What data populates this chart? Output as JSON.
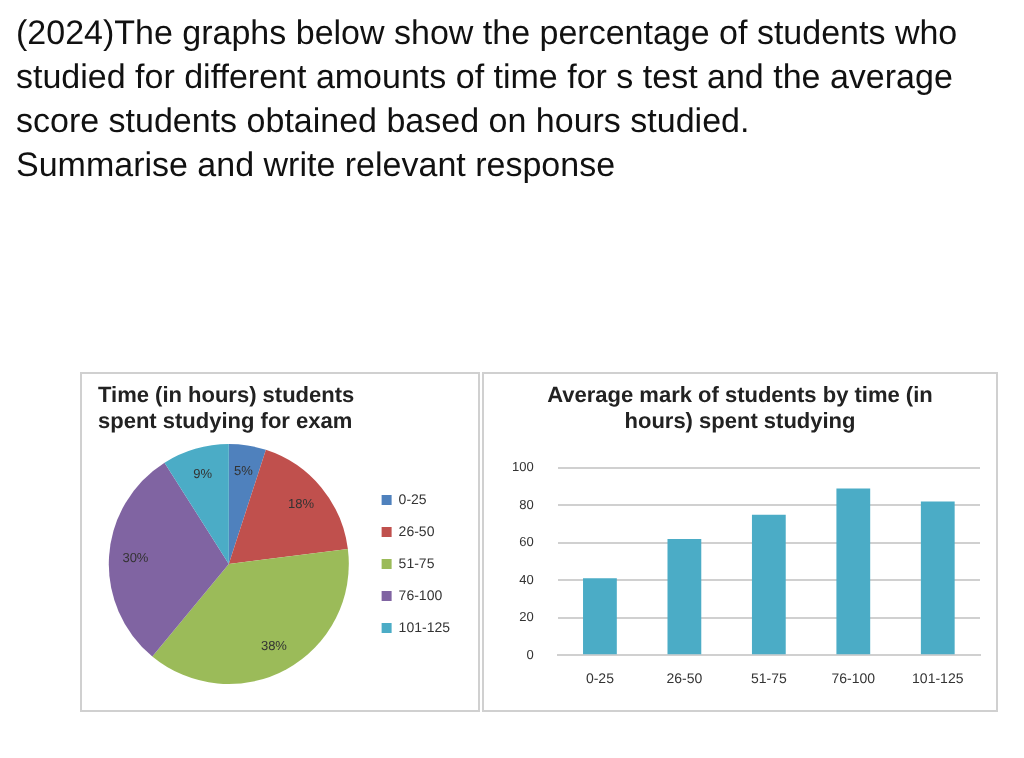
{
  "chart_data": [
    {
      "type": "pie",
      "title": "Time (in hours) students spent studying for exam",
      "annotations": [
        "(2024)The graphs below show the percentage of students who studied for different amounts of time for s test and the average score students obtained based on hours studied.\nSummarise and write relevant response"
      ],
      "categories": [
        "0-25",
        "26-50",
        "51-75",
        "76-100",
        "101-125"
      ],
      "values": [
        5,
        18,
        38,
        30,
        9
      ],
      "colors": [
        "#4f81bd",
        "#c0504d",
        "#9bbb59",
        "#8064a2",
        "#4bacc6"
      ],
      "value_labels": [
        "5%",
        "18%",
        "38%",
        "30%",
        "9%"
      ],
      "legend": "right"
    },
    {
      "type": "bar",
      "title": "Average mark of students by time (in hours) spent studying",
      "categories": [
        "0-25",
        "26-50",
        "51-75",
        "76-100",
        "101-125"
      ],
      "values": [
        41,
        62,
        75,
        89,
        82
      ],
      "color": "#4bacc6",
      "ylim": [
        0,
        100
      ],
      "yticks": [
        0,
        20,
        40,
        60,
        80,
        100
      ],
      "grid": "y"
    }
  ]
}
